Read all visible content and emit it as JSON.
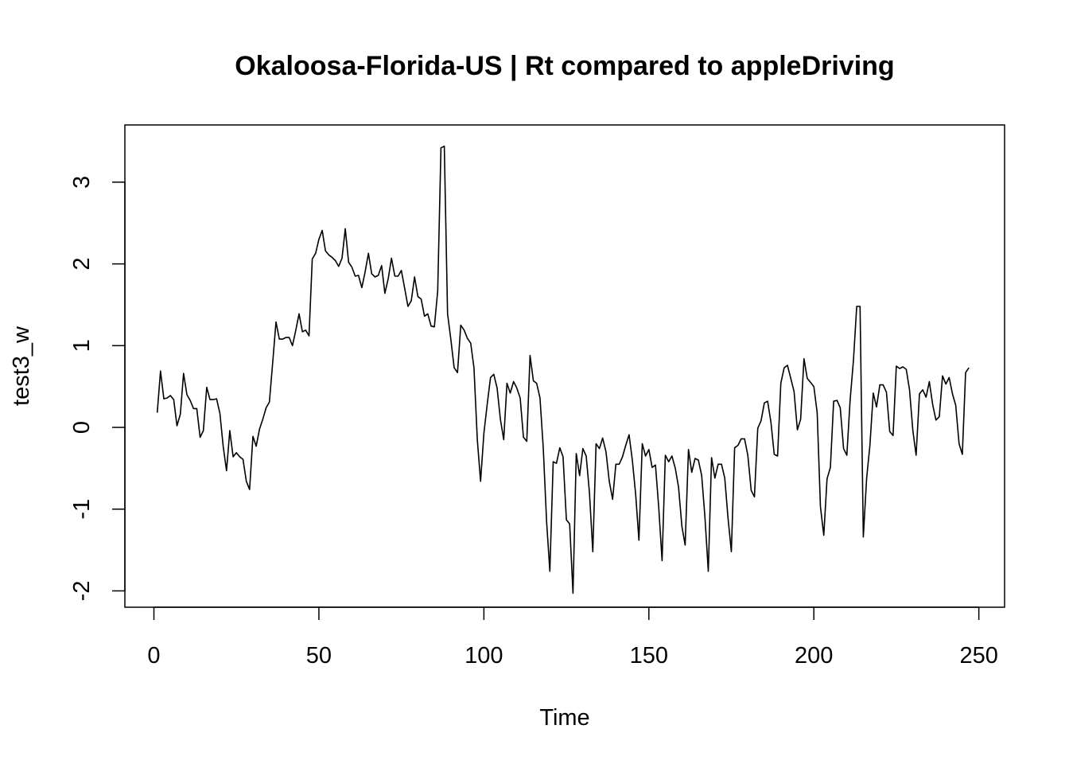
{
  "chart_data": {
    "type": "line",
    "title": "Okaloosa-Florida-US | Rt compared to appleDriving",
    "xlabel": "Time",
    "ylabel": "test3_w",
    "xlim": [
      -8.8,
      257.8
    ],
    "ylim": [
      -2.2,
      3.7
    ],
    "x_ticks": [
      0,
      50,
      100,
      150,
      200,
      250
    ],
    "x_tick_labels": [
      "0",
      "50",
      "100",
      "150",
      "200",
      "250"
    ],
    "y_ticks": [
      -2,
      -1,
      0,
      1,
      2,
      3
    ],
    "y_tick_labels": [
      "-2",
      "-1",
      "0",
      "1",
      "2",
      "3"
    ],
    "grid": false,
    "line_color": "#000000",
    "series": [
      {
        "x_start": 1,
        "values": [
          0.18,
          0.69,
          0.35,
          0.36,
          0.39,
          0.34,
          0.02,
          0.16,
          0.66,
          0.4,
          0.33,
          0.23,
          0.23,
          -0.12,
          -0.04,
          0.49,
          0.34,
          0.34,
          0.35,
          0.17,
          -0.23,
          -0.53,
          -0.04,
          -0.36,
          -0.31,
          -0.36,
          -0.39,
          -0.66,
          -0.76,
          -0.11,
          -0.23,
          -0.02,
          0.1,
          0.24,
          0.31,
          0.8,
          1.29,
          1.08,
          1.08,
          1.1,
          1.1,
          1.0,
          1.19,
          1.39,
          1.17,
          1.19,
          1.12,
          2.06,
          2.13,
          2.3,
          2.41,
          2.16,
          2.11,
          2.08,
          2.04,
          1.97,
          2.07,
          2.43,
          2.02,
          1.96,
          1.85,
          1.86,
          1.71,
          1.9,
          2.13,
          1.88,
          1.84,
          1.86,
          1.98,
          1.64,
          1.82,
          2.07,
          1.85,
          1.85,
          1.92,
          1.7,
          1.48,
          1.55,
          1.84,
          1.6,
          1.57,
          1.36,
          1.39,
          1.24,
          1.23,
          1.67,
          3.42,
          3.44,
          1.39,
          1.07,
          0.73,
          0.67,
          1.25,
          1.19,
          1.09,
          1.03,
          0.73,
          -0.15,
          -0.66,
          -0.07,
          0.28,
          0.61,
          0.65,
          0.48,
          0.1,
          -0.15,
          0.54,
          0.42,
          0.56,
          0.48,
          0.36,
          -0.12,
          -0.17,
          0.88,
          0.57,
          0.54,
          0.36,
          -0.25,
          -1.15,
          -1.76,
          -0.42,
          -0.44,
          -0.25,
          -0.36,
          -1.13,
          -1.18,
          -2.03,
          -0.32,
          -0.59,
          -0.26,
          -0.35,
          -0.8,
          -1.52,
          -0.2,
          -0.26,
          -0.13,
          -0.3,
          -0.66,
          -0.88,
          -0.45,
          -0.45,
          -0.36,
          -0.22,
          -0.09,
          -0.4,
          -0.82,
          -1.38,
          -0.2,
          -0.35,
          -0.27,
          -0.49,
          -0.46,
          -0.98,
          -1.63,
          -0.34,
          -0.42,
          -0.35,
          -0.5,
          -0.73,
          -1.21,
          -1.44,
          -0.27,
          -0.55,
          -0.38,
          -0.4,
          -0.59,
          -1.1,
          -1.76,
          -0.37,
          -0.62,
          -0.45,
          -0.45,
          -0.62,
          -1.12,
          -1.52,
          -0.25,
          -0.22,
          -0.14,
          -0.14,
          -0.34,
          -0.77,
          -0.85,
          -0.01,
          0.08,
          0.3,
          0.32,
          0.06,
          -0.33,
          -0.35,
          0.54,
          0.73,
          0.76,
          0.6,
          0.44,
          -0.03,
          0.1,
          0.84,
          0.6,
          0.55,
          0.5,
          0.18,
          -0.97,
          -1.32,
          -0.63,
          -0.49,
          0.32,
          0.33,
          0.24,
          -0.26,
          -0.34,
          0.33,
          0.82,
          1.48,
          1.48,
          -1.34,
          -0.62,
          -0.22,
          0.42,
          0.25,
          0.52,
          0.52,
          0.43,
          -0.05,
          -0.1,
          0.75,
          0.72,
          0.74,
          0.71,
          0.46,
          -0.04,
          -0.34,
          0.41,
          0.46,
          0.37,
          0.56,
          0.28,
          0.09,
          0.13,
          0.63,
          0.53,
          0.61,
          0.41,
          0.27,
          -0.2,
          -0.33,
          0.67,
          0.73
        ]
      }
    ]
  }
}
